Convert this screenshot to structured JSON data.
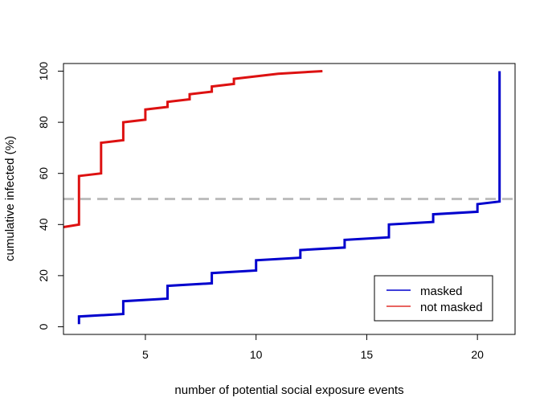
{
  "chart_data": {
    "type": "line",
    "title": "",
    "xlabel": "number of potential social exposure events",
    "ylabel": "cumulative infected (%)",
    "xlim": [
      1.3,
      21.7
    ],
    "ylim": [
      -3,
      103
    ],
    "x_ticks": [
      5,
      10,
      15,
      20
    ],
    "y_ticks": [
      0,
      20,
      40,
      60,
      80,
      100
    ],
    "x_tick_labels": [
      "5",
      "10",
      "15",
      "20"
    ],
    "y_tick_labels": [
      "0",
      "20",
      "40",
      "60",
      "80",
      "100"
    ],
    "grid": false,
    "reference_line": {
      "y": 50,
      "style": "dashed",
      "color": "#bebebe"
    },
    "legend": {
      "position": "bottom-right",
      "entries": [
        {
          "label": "masked",
          "color": "#0000cd"
        },
        {
          "label": "not masked",
          "color": "#e0302b"
        }
      ]
    },
    "series": [
      {
        "name": "masked",
        "color": "#0000cd",
        "points": [
          [
            2,
            1
          ],
          [
            2,
            4
          ],
          [
            4,
            5
          ],
          [
            4,
            10
          ],
          [
            6,
            11
          ],
          [
            6,
            16
          ],
          [
            8,
            17
          ],
          [
            8,
            21
          ],
          [
            10,
            22
          ],
          [
            10,
            26
          ],
          [
            12,
            27
          ],
          [
            12,
            30
          ],
          [
            14,
            31
          ],
          [
            14,
            34
          ],
          [
            16,
            35
          ],
          [
            16,
            40
          ],
          [
            18,
            41
          ],
          [
            18,
            44
          ],
          [
            20,
            45
          ],
          [
            20,
            48
          ],
          [
            21,
            49
          ],
          [
            21,
            100
          ]
        ]
      },
      {
        "name": "not masked",
        "color": "#dd1111",
        "points": [
          [
            1.3,
            39
          ],
          [
            2,
            40
          ],
          [
            2,
            59
          ],
          [
            3,
            60
          ],
          [
            3,
            72
          ],
          [
            4,
            73
          ],
          [
            4,
            80
          ],
          [
            5,
            81
          ],
          [
            5,
            85
          ],
          [
            6,
            86
          ],
          [
            6,
            88
          ],
          [
            7,
            89
          ],
          [
            7,
            91
          ],
          [
            8,
            92
          ],
          [
            8,
            94
          ],
          [
            9,
            95
          ],
          [
            9,
            97
          ],
          [
            11,
            99
          ],
          [
            13,
            100
          ]
        ]
      }
    ]
  }
}
